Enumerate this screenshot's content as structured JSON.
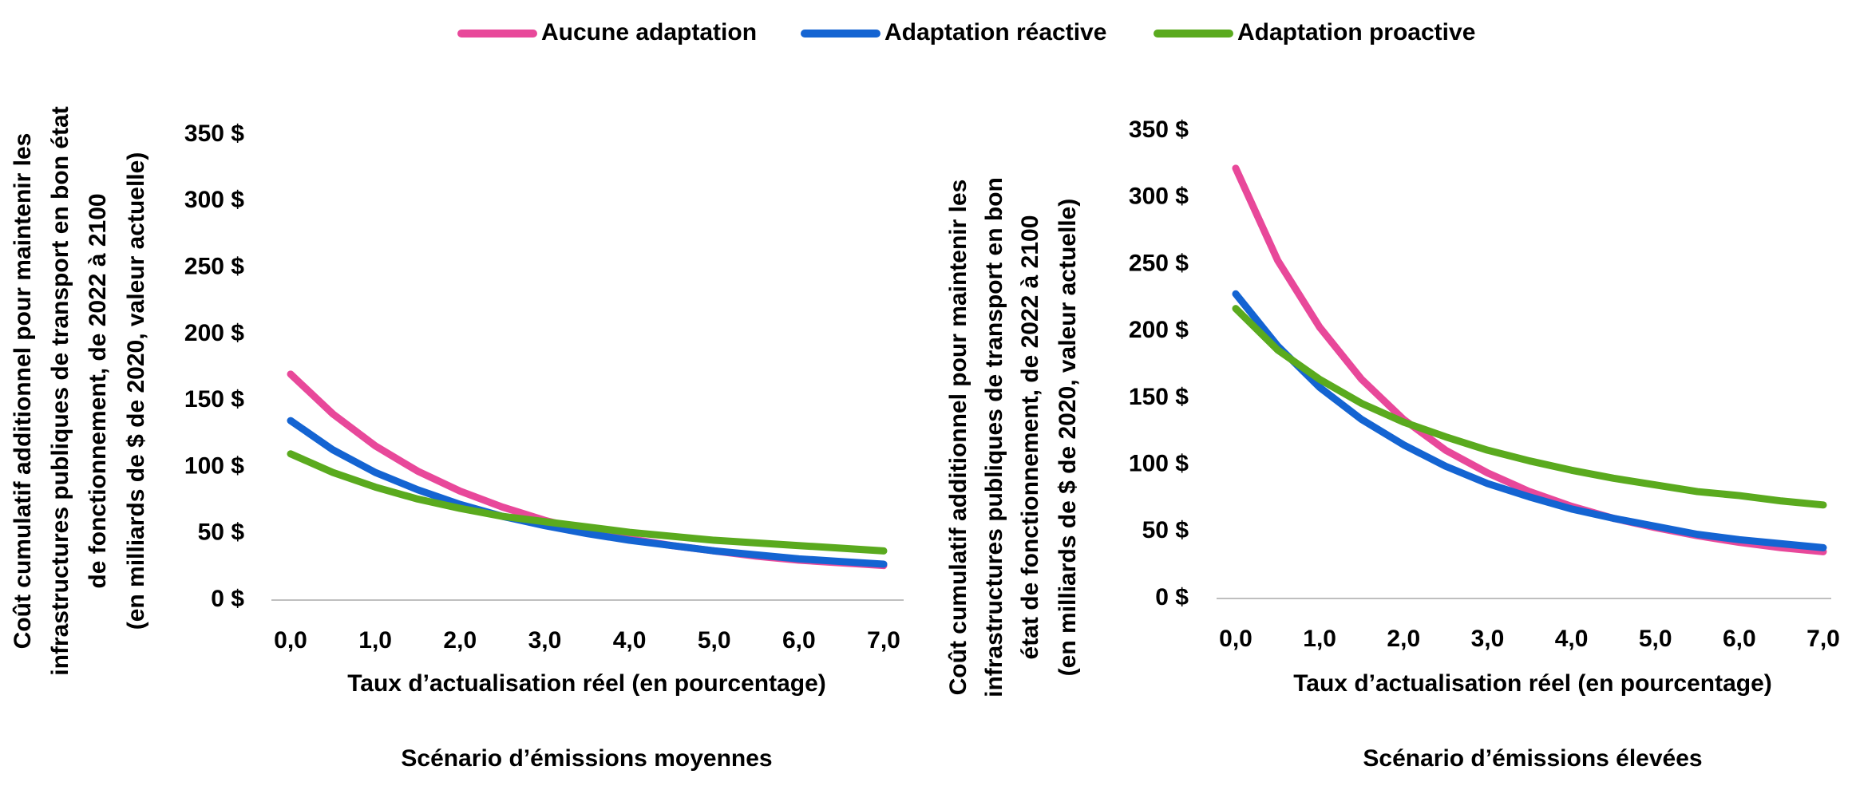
{
  "chart_data": [
    {
      "type": "line",
      "title": "Scénario d’émissions moyennes",
      "xlabel": "Taux d’actualisation réel (en pourcentage)",
      "ylabel": [
        "Coût cumulatif additionnel pour maintenir les",
        "infrastructures publiques de transport en bon état",
        "de fonctionnement, de 2022 à 2100",
        "(en milliards de $ de 2020, valeur actuelle)"
      ],
      "x": [
        0,
        0.5,
        1,
        1.5,
        2,
        2.5,
        3,
        3.5,
        4,
        4.5,
        5,
        5.5,
        6,
        6.5,
        7
      ],
      "series": [
        {
          "name": "Aucune adaptation",
          "color": "#e8489a",
          "values": [
            170,
            140,
            116,
            97,
            82,
            70,
            60,
            52,
            46,
            41,
            37,
            33,
            30,
            28,
            26
          ]
        },
        {
          "name": "Adaptation réactive",
          "color": "#1464d2",
          "values": [
            135,
            113,
            96,
            83,
            72,
            63,
            56,
            50,
            45,
            41,
            37,
            34,
            31,
            29,
            27
          ]
        },
        {
          "name": "Adaptation proactive",
          "color": "#5aaa1e",
          "values": [
            110,
            96,
            85,
            76,
            69,
            63,
            59,
            55,
            51,
            48,
            45,
            43,
            41,
            39,
            37
          ]
        }
      ],
      "xlim": [
        0,
        7
      ],
      "xticks": [
        {
          "value": 0,
          "label": "0,0"
        },
        {
          "value": 1,
          "label": "1,0"
        },
        {
          "value": 2,
          "label": "2,0"
        },
        {
          "value": 3,
          "label": "3,0"
        },
        {
          "value": 4,
          "label": "4,0"
        },
        {
          "value": 5,
          "label": "5,0"
        },
        {
          "value": 6,
          "label": "6,0"
        },
        {
          "value": 7,
          "label": "7,0"
        }
      ],
      "ylim": [
        0,
        350
      ],
      "yticks": [
        {
          "value": 0,
          "label": "0 $"
        },
        {
          "value": 50,
          "label": "50 $"
        },
        {
          "value": 100,
          "label": "100 $"
        },
        {
          "value": 150,
          "label": "150 $"
        },
        {
          "value": 200,
          "label": "200 $"
        },
        {
          "value": 250,
          "label": "250 $"
        },
        {
          "value": 300,
          "label": "300 $"
        },
        {
          "value": 350,
          "label": "350 $"
        }
      ],
      "grid": false
    },
    {
      "type": "line",
      "title": "Scénario d’émissions élevées",
      "xlabel": "Taux d’actualisation réel (en pourcentage)",
      "ylabel": [
        "Coût cumulatif additionnel pour maintenir les",
        "infrastructures publiques de transport en bon",
        "état de fonctionnement, de 2022 à 2100",
        "(en milliards de $ de 2020, valeur actuelle)"
      ],
      "x": [
        0,
        0.5,
        1,
        1.5,
        2,
        2.5,
        3,
        3.5,
        4,
        4.5,
        5,
        5.5,
        6,
        6.5,
        7
      ],
      "series": [
        {
          "name": "Aucune adaptation",
          "color": "#e8489a",
          "values": [
            322,
            253,
            203,
            164,
            134,
            111,
            94,
            80,
            69,
            60,
            53,
            47,
            42,
            38,
            35
          ]
        },
        {
          "name": "Adaptation réactive",
          "color": "#1464d2",
          "values": [
            228,
            189,
            158,
            134,
            115,
            99,
            86,
            76,
            67,
            60,
            54,
            48,
            44,
            41,
            38
          ]
        },
        {
          "name": "Adaptation proactive",
          "color": "#5aaa1e",
          "values": [
            217,
            186,
            164,
            146,
            132,
            121,
            111,
            103,
            96,
            90,
            85,
            80,
            77,
            73,
            70
          ]
        }
      ],
      "xlim": [
        0,
        7
      ],
      "xticks": [
        {
          "value": 0,
          "label": "0,0"
        },
        {
          "value": 1,
          "label": "1,0"
        },
        {
          "value": 2,
          "label": "2,0"
        },
        {
          "value": 3,
          "label": "3,0"
        },
        {
          "value": 4,
          "label": "4,0"
        },
        {
          "value": 5,
          "label": "5,0"
        },
        {
          "value": 6,
          "label": "6,0"
        },
        {
          "value": 7,
          "label": "7,0"
        }
      ],
      "ylim": [
        0,
        350
      ],
      "yticks": [
        {
          "value": 0,
          "label": "0 $"
        },
        {
          "value": 50,
          "label": "50 $"
        },
        {
          "value": 100,
          "label": "100 $"
        },
        {
          "value": 150,
          "label": "150 $"
        },
        {
          "value": 200,
          "label": "200 $"
        },
        {
          "value": 250,
          "label": "250 $"
        },
        {
          "value": 300,
          "label": "300 $"
        },
        {
          "value": 350,
          "label": "350 $"
        }
      ],
      "grid": false
    }
  ]
}
